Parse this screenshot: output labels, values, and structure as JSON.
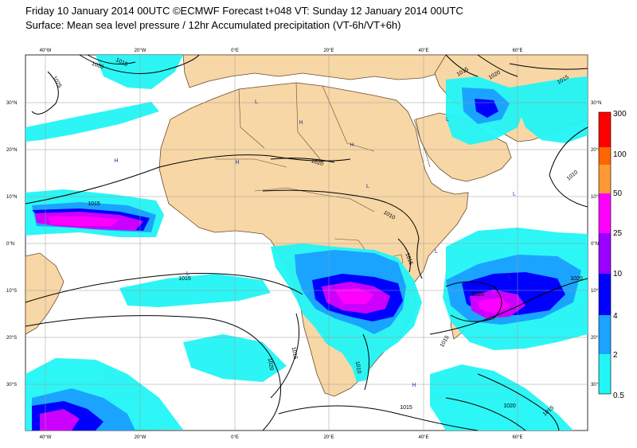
{
  "header": {
    "title_line1": "Friday 10 January 2014 00UTC ©ECMWF Forecast t+048 VT: Sunday 12 January 2014 00UTC",
    "title_line2": "Surface: Mean sea level pressure / 12hr Accumulated precipitation (VT-6h/VT+6h)"
  },
  "colors": {
    "ocean": "#ffffff",
    "land": "#f7d7a6",
    "coast": "#6b4a2a",
    "grid": "#9a9a9a",
    "isobar": "#000000",
    "precip_0_5": "#22f5f5",
    "precip_2": "#1aa4ff",
    "precip_4": "#0000ff",
    "precip_10": "#9900ff",
    "precip_25": "#ff00ff",
    "precip_50": "#ff8800",
    "precip_100": "#ff4400",
    "precip_300": "#ff0000"
  },
  "axes": {
    "lon_ticks_top": [
      "40°W",
      "20°W",
      "0°E",
      "20°E",
      "40°E",
      "60°E"
    ],
    "lon_ticks_bottom": [
      "40°W",
      "20°W",
      "0°E",
      "20°E",
      "40°E",
      "60°E"
    ],
    "lat_ticks_left": [
      "30°N",
      "20°N",
      "10°N",
      "0°N",
      "10°S",
      "20°S",
      "30°S"
    ],
    "lat_ticks_right": [
      "30°N",
      "20°N",
      "10°N",
      "0°N",
      "10°S",
      "20°S",
      "30°S"
    ]
  },
  "isobar_labels": [
    "1015",
    "1020",
    "1025",
    "1015",
    "1020",
    "1010",
    "1015",
    "1020",
    "1015",
    "1015",
    "1010",
    "1015",
    "1020",
    "1020",
    "1015",
    "1010",
    "1015",
    "1020",
    "1015",
    "1020",
    "1015"
  ],
  "pressure_centers": [
    "L",
    "L",
    "H",
    "H",
    "H",
    "L",
    "L",
    "L",
    "L",
    "H",
    "L",
    "H",
    "L"
  ],
  "colorbar": {
    "levels": [
      "300",
      "100",
      "50",
      "25",
      "10",
      "4",
      "2",
      "0.5"
    ]
  }
}
